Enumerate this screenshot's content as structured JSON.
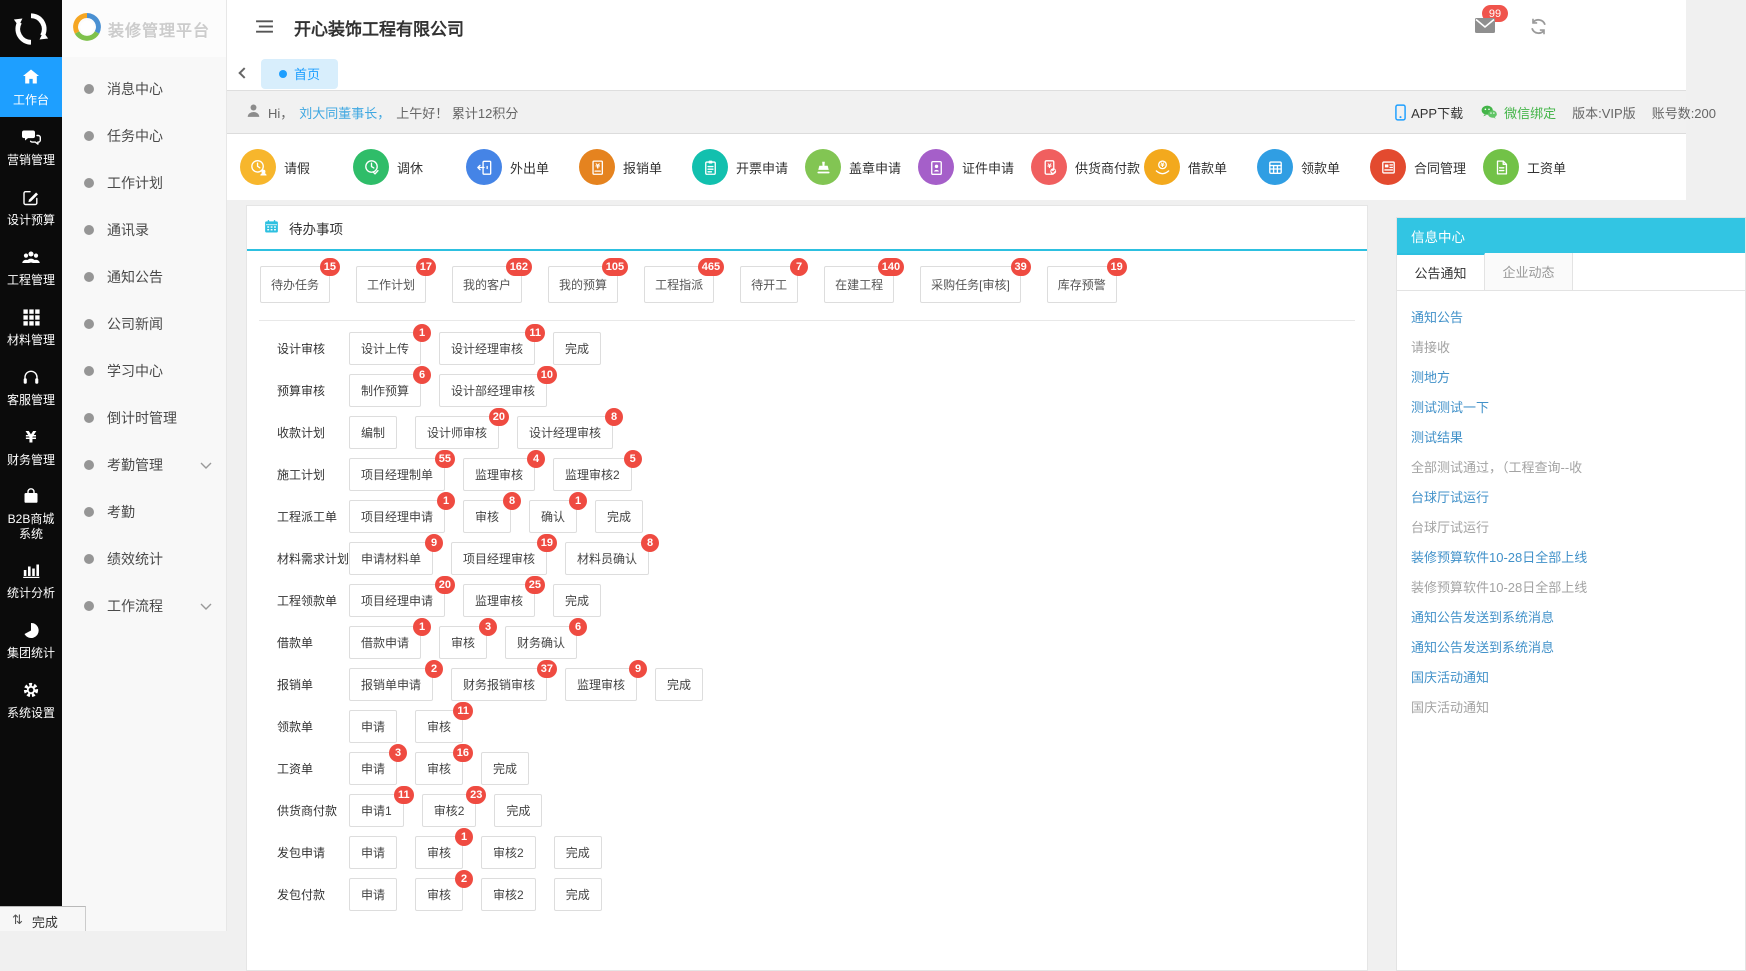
{
  "colors": {
    "accent_blue": "#1e9fff",
    "accent_cyan": "#2dc0e0",
    "badge_red": "#ef4b41",
    "wechat_green": "#44b549"
  },
  "rail": {
    "items": [
      {
        "label": "工作台",
        "icon": "home",
        "active": true
      },
      {
        "label": "营销管理",
        "icon": "chat",
        "active": false
      },
      {
        "label": "设计预算",
        "icon": "edit",
        "active": false
      },
      {
        "label": "工程管理",
        "icon": "users",
        "active": false
      },
      {
        "label": "材料管理",
        "icon": "grid",
        "active": false
      },
      {
        "label": "客服管理",
        "icon": "headset",
        "active": false
      },
      {
        "label": "财务管理",
        "icon": "yen",
        "active": false
      },
      {
        "label": "B2B商城系统",
        "icon": "bag",
        "active": false
      },
      {
        "label": "统计分析",
        "icon": "chart",
        "active": false
      },
      {
        "label": "集团统计",
        "icon": "pie",
        "active": false
      },
      {
        "label": "系统设置",
        "icon": "gear",
        "active": false
      }
    ]
  },
  "submenu": {
    "logo_text": "装修管理平台",
    "items": [
      {
        "label": "消息中心",
        "chevron": false
      },
      {
        "label": "任务中心",
        "chevron": false
      },
      {
        "label": "工作计划",
        "chevron": false
      },
      {
        "label": "通讯录",
        "chevron": false
      },
      {
        "label": "通知公告",
        "chevron": false
      },
      {
        "label": "公司新闻",
        "chevron": false
      },
      {
        "label": "学习中心",
        "chevron": false
      },
      {
        "label": "倒计时管理",
        "chevron": false
      },
      {
        "label": "考勤管理",
        "chevron": true
      },
      {
        "label": "考勤",
        "chevron": false
      },
      {
        "label": "绩效统计",
        "chevron": false
      },
      {
        "label": "工作流程",
        "chevron": true
      }
    ]
  },
  "topbar": {
    "title": "开心装饰工程有限公司",
    "badge": "99"
  },
  "tabbar": {
    "tab_label": "首页"
  },
  "greeting": {
    "hi": "Hi，",
    "user": "刘大同董事长，",
    "message": "上午好！ 累计12积分",
    "app_download": "APP下载",
    "wechat_bind": "微信绑定",
    "version": "版本:VIP版",
    "accounts": "账号数:200"
  },
  "quick_actions": [
    {
      "label": "请假",
      "icon": "clock-person",
      "color": "#f7b62c"
    },
    {
      "label": "调休",
      "icon": "clock-check",
      "color": "#2fbd69"
    },
    {
      "label": "外出单",
      "icon": "door",
      "color": "#4584e6"
    },
    {
      "label": "报销单",
      "icon": "money-doc",
      "color": "#e5831f"
    },
    {
      "label": "开票申请",
      "icon": "clipboard",
      "color": "#12c0ae"
    },
    {
      "label": "盖章申请",
      "icon": "stamp",
      "color": "#82c553"
    },
    {
      "label": "证件申请",
      "icon": "id-card",
      "color": "#a55fc9"
    },
    {
      "label": "供货商付款",
      "icon": "pay-shield",
      "color": "#f05f5f"
    },
    {
      "label": "借款单",
      "icon": "coin-hand",
      "color": "#f3a91d"
    },
    {
      "label": "领款单",
      "icon": "table-doc",
      "color": "#309ee3"
    },
    {
      "label": "合同管理",
      "icon": "contract",
      "color": "#e34a2f"
    },
    {
      "label": "工资单",
      "icon": "salary-doc",
      "color": "#72c247"
    }
  ],
  "todo": {
    "title": "待办事项",
    "filters": [
      {
        "label": "待办任务",
        "count": 15
      },
      {
        "label": "工作计划",
        "count": 17
      },
      {
        "label": "我的客户",
        "count": 162
      },
      {
        "label": "我的预算",
        "count": 105
      },
      {
        "label": "工程指派",
        "count": 465
      },
      {
        "label": "待开工",
        "count": 7
      },
      {
        "label": "在建工程",
        "count": 140
      },
      {
        "label": "采购任务[审核]",
        "count": 39
      },
      {
        "label": "库存预警",
        "count": 19
      }
    ],
    "flows": [
      {
        "label": "设计审核",
        "steps": [
          {
            "label": "设计上传",
            "count": 1
          },
          {
            "label": "设计经理审核",
            "count": 11
          },
          {
            "label": "完成"
          }
        ]
      },
      {
        "label": "预算审核",
        "steps": [
          {
            "label": "制作预算",
            "count": 6
          },
          {
            "label": "设计部经理审核",
            "count": 10
          }
        ]
      },
      {
        "label": "收款计划",
        "steps": [
          {
            "label": "编制"
          },
          {
            "label": "设计师审核",
            "count": 20
          },
          {
            "label": "设计经理审核",
            "count": 8
          }
        ]
      },
      {
        "label": "施工计划",
        "steps": [
          {
            "label": "项目经理制单",
            "count": 55
          },
          {
            "label": "监理审核",
            "count": 4
          },
          {
            "label": "监理审核2",
            "count": 5
          }
        ]
      },
      {
        "label": "工程派工单",
        "steps": [
          {
            "label": "项目经理申请",
            "count": 1
          },
          {
            "label": "审核",
            "count": 8
          },
          {
            "label": "确认",
            "count": 1
          },
          {
            "label": "完成"
          }
        ]
      },
      {
        "label": "材料需求计划",
        "steps": [
          {
            "label": "申请材料单",
            "count": 9
          },
          {
            "label": "项目经理审核",
            "count": 19
          },
          {
            "label": "材料员确认",
            "count": 8
          }
        ]
      },
      {
        "label": "工程领款单",
        "steps": [
          {
            "label": "项目经理申请",
            "count": 20
          },
          {
            "label": "监理审核",
            "count": 25
          },
          {
            "label": "完成"
          }
        ]
      },
      {
        "label": "借款单",
        "steps": [
          {
            "label": "借款申请",
            "count": 1
          },
          {
            "label": "审核",
            "count": 3
          },
          {
            "label": "财务确认",
            "count": 6
          }
        ]
      },
      {
        "label": "报销单",
        "steps": [
          {
            "label": "报销单申请",
            "count": 2
          },
          {
            "label": "财务报销审核",
            "count": 37
          },
          {
            "label": "监理审核",
            "count": 9
          },
          {
            "label": "完成"
          }
        ]
      },
      {
        "label": "领款单",
        "steps": [
          {
            "label": "申请"
          },
          {
            "label": "审核",
            "count": 11
          }
        ]
      },
      {
        "label": "工资单",
        "steps": [
          {
            "label": "申请",
            "count": 3
          },
          {
            "label": "审核",
            "count": 16
          },
          {
            "label": "完成"
          }
        ]
      },
      {
        "label": "供货商付款",
        "steps": [
          {
            "label": "申请1",
            "count": 11
          },
          {
            "label": "审核2",
            "count": 23
          },
          {
            "label": "完成"
          }
        ]
      },
      {
        "label": "发包申请",
        "steps": [
          {
            "label": "申请"
          },
          {
            "label": "审核",
            "count": 1
          },
          {
            "label": "审核2"
          },
          {
            "label": "完成"
          }
        ]
      },
      {
        "label": "发包付款",
        "steps": [
          {
            "label": "申请"
          },
          {
            "label": "审核",
            "count": 2
          },
          {
            "label": "审核2"
          },
          {
            "label": "完成"
          }
        ]
      }
    ]
  },
  "info_center": {
    "title": "信息中心",
    "tabs": [
      {
        "label": "公告通知",
        "active": true
      },
      {
        "label": "企业动态",
        "active": false
      }
    ],
    "items": [
      {
        "text": "通知公告",
        "type": "link"
      },
      {
        "text": "请接收",
        "type": "muted"
      },
      {
        "text": "测地方",
        "type": "link"
      },
      {
        "text": "测试测试一下",
        "type": "link"
      },
      {
        "text": "测试结果",
        "type": "link"
      },
      {
        "text": "全部测试通过，（工程查询--收",
        "type": "muted"
      },
      {
        "text": "台球厅试运行",
        "type": "link"
      },
      {
        "text": "台球厅试运行",
        "type": "muted"
      },
      {
        "text": "装修预算软件10-28日全部上线",
        "type": "link"
      },
      {
        "text": "装修预算软件10-28日全部上线",
        "type": "muted"
      },
      {
        "text": "通知公告发送到系统消息",
        "type": "link"
      },
      {
        "text": "通知公告发送到系统消息",
        "type": "link"
      },
      {
        "text": "国庆活动通知",
        "type": "link"
      },
      {
        "text": "国庆活动通知",
        "type": "muted"
      }
    ]
  },
  "statusbar": {
    "icon": "⇅",
    "label": "完成"
  }
}
